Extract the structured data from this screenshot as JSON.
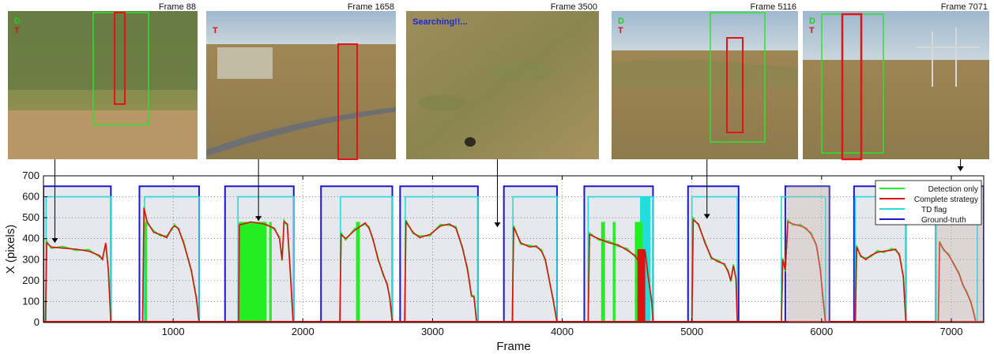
{
  "thumbnails": [
    {
      "frame": 88,
      "label": "Frame 88",
      "overlay_D": "D",
      "overlay_T": "T",
      "overlay_status": "",
      "scene": "olive",
      "boxes": [
        "green",
        "red"
      ]
    },
    {
      "frame": 1658,
      "label": "Frame 1658",
      "overlay_D": "",
      "overlay_T": "T",
      "overlay_status": "",
      "scene": "road",
      "boxes": [
        "red"
      ]
    },
    {
      "frame": 3500,
      "label": "Frame 3500",
      "overlay_D": "",
      "overlay_T": "",
      "overlay_status": "Searching!!...",
      "scene": "ground",
      "boxes": []
    },
    {
      "frame": 5116,
      "label": "Frame 5116",
      "overlay_D": "D",
      "overlay_T": "T",
      "overlay_status": "",
      "scene": "hills",
      "boxes": [
        "green",
        "red"
      ]
    },
    {
      "frame": 7071,
      "label": "Frame 7071",
      "overlay_D": "D",
      "overlay_T": "T",
      "overlay_status": "",
      "scene": "tower",
      "boxes": [
        "green",
        "red"
      ]
    }
  ],
  "colors": {
    "detection": "#22ee22",
    "complete": "#dd1111",
    "td_flag": "#22dddd",
    "ground_truth": "#1a1acc",
    "shade": "#e7e7ee",
    "highlight": "#cdb4a8"
  },
  "chart_data": {
    "type": "line",
    "xlabel": "Frame",
    "ylabel": "X (pixels)",
    "xlim": [
      0,
      7250
    ],
    "ylim": [
      0,
      700
    ],
    "xticks": [
      1000,
      2000,
      3000,
      4000,
      5000,
      6000,
      7000
    ],
    "yticks": [
      0,
      100,
      200,
      300,
      400,
      500,
      600,
      700
    ],
    "grid": "dotted",
    "legend_position": "top-right",
    "legend": [
      "Detection only",
      "Complete strategy",
      "TD flag",
      "Ground-truth"
    ],
    "segments": [
      {
        "gt": [
          0,
          520
        ],
        "td": [
          20,
          520
        ],
        "track": [
          [
            15,
            0
          ],
          [
            25,
            380
          ],
          [
            60,
            360
          ],
          [
            150,
            355
          ],
          [
            250,
            350
          ],
          [
            350,
            340
          ],
          [
            430,
            320
          ],
          [
            455,
            300
          ],
          [
            480,
            380
          ],
          [
            500,
            250
          ],
          [
            520,
            0
          ]
        ]
      },
      {
        "gt": [
          740,
          1200
        ],
        "td": [
          780,
          1200
        ],
        "track": [
          [
            765,
            0
          ],
          [
            775,
            545
          ],
          [
            800,
            480
          ],
          [
            850,
            430
          ],
          [
            900,
            420
          ],
          [
            950,
            405
          ],
          [
            990,
            450
          ],
          [
            1010,
            460
          ],
          [
            1040,
            450
          ],
          [
            1080,
            380
          ],
          [
            1140,
            250
          ],
          [
            1180,
            110
          ],
          [
            1200,
            0
          ]
        ]
      },
      {
        "gt": [
          1400,
          1930
        ],
        "td": [
          1500,
          1930
        ],
        "track": [
          [
            1505,
            0
          ],
          [
            1510,
            465
          ],
          [
            1600,
            480
          ],
          [
            1700,
            470
          ],
          [
            1780,
            450
          ],
          [
            1820,
            400
          ],
          [
            1840,
            300
          ],
          [
            1855,
            480
          ],
          [
            1880,
            470
          ],
          [
            1905,
            220
          ],
          [
            1925,
            0
          ]
        ]
      },
      {
        "gt": [
          2140,
          2690
        ],
        "td": [
          2290,
          2690
        ],
        "track": [
          [
            2285,
            0
          ],
          [
            2295,
            420
          ],
          [
            2330,
            400
          ],
          [
            2400,
            440
          ],
          [
            2480,
            475
          ],
          [
            2510,
            450
          ],
          [
            2540,
            400
          ],
          [
            2580,
            300
          ],
          [
            2620,
            230
          ],
          [
            2650,
            180
          ],
          [
            2670,
            120
          ],
          [
            2690,
            0
          ]
        ]
      },
      {
        "gt": [
          2750,
          3350
        ],
        "td": [
          2790,
          3350
        ],
        "track": [
          [
            2785,
            0
          ],
          [
            2795,
            480
          ],
          [
            2850,
            430
          ],
          [
            2900,
            405
          ],
          [
            2980,
            420
          ],
          [
            3060,
            460
          ],
          [
            3130,
            470
          ],
          [
            3180,
            450
          ],
          [
            3230,
            360
          ],
          [
            3270,
            250
          ],
          [
            3300,
            130
          ],
          [
            3320,
            120
          ],
          [
            3340,
            0
          ]
        ]
      },
      {
        "gt": [
          3550,
          3960
        ],
        "td": [
          3620,
          3960
        ],
        "track": [
          [
            3615,
            0
          ],
          [
            3625,
            455
          ],
          [
            3680,
            380
          ],
          [
            3750,
            360
          ],
          [
            3800,
            365
          ],
          [
            3840,
            340
          ],
          [
            3870,
            300
          ],
          [
            3900,
            200
          ],
          [
            3930,
            110
          ],
          [
            3960,
            0
          ]
        ]
      },
      {
        "gt": [
          4170,
          4700
        ],
        "td": [
          4200,
          4700
        ],
        "track": [
          [
            4200,
            0
          ],
          [
            4210,
            420
          ],
          [
            4280,
            400
          ],
          [
            4360,
            380
          ],
          [
            4430,
            370
          ],
          [
            4500,
            345
          ],
          [
            4560,
            320
          ],
          [
            4600,
            280
          ],
          [
            4640,
            340
          ],
          [
            4660,
            230
          ],
          [
            4690,
            100
          ],
          [
            4700,
            0
          ]
        ]
      },
      {
        "gt": [
          4970,
          5360
        ],
        "td": [
          5000,
          5350
        ],
        "track": [
          [
            5000,
            0
          ],
          [
            5010,
            490
          ],
          [
            5050,
            470
          ],
          [
            5100,
            380
          ],
          [
            5150,
            310
          ],
          [
            5200,
            290
          ],
          [
            5250,
            280
          ],
          [
            5280,
            240
          ],
          [
            5300,
            200
          ],
          [
            5320,
            270
          ],
          [
            5340,
            210
          ],
          [
            5350,
            0
          ]
        ]
      },
      {
        "gt": [
          5720,
          6060
        ],
        "td": [
          5690,
          6030
        ],
        "track": [
          [
            5690,
            0
          ],
          [
            5700,
            300
          ],
          [
            5720,
            250
          ],
          [
            5740,
            480
          ],
          [
            5780,
            470
          ],
          [
            5840,
            460
          ],
          [
            5880,
            450
          ],
          [
            5920,
            420
          ],
          [
            5960,
            370
          ],
          [
            5990,
            250
          ],
          [
            6010,
            120
          ],
          [
            6030,
            0
          ]
        ]
      },
      {
        "gt": [
          6250,
          6650
        ],
        "td": [
          6260,
          6650
        ],
        "track": [
          [
            6260,
            0
          ],
          [
            6270,
            360
          ],
          [
            6300,
            320
          ],
          [
            6340,
            300
          ],
          [
            6380,
            320
          ],
          [
            6430,
            335
          ],
          [
            6480,
            340
          ],
          [
            6540,
            345
          ],
          [
            6570,
            350
          ],
          [
            6600,
            320
          ],
          [
            6630,
            220
          ],
          [
            6650,
            0
          ]
        ]
      },
      {
        "gt": [
          6880,
          7250
        ],
        "td": [
          6880,
          7200
        ],
        "track": [
          [
            6900,
            0
          ],
          [
            6910,
            380
          ],
          [
            6940,
            350
          ],
          [
            6980,
            320
          ],
          [
            7020,
            280
          ],
          [
            7060,
            230
          ],
          [
            7090,
            180
          ],
          [
            7120,
            140
          ],
          [
            7150,
            100
          ],
          [
            7170,
            50
          ],
          [
            7190,
            0
          ]
        ]
      }
    ],
    "detection_bursts": [
      [
        780,
        800
      ],
      [
        1510,
        1720
      ],
      [
        1740,
        1760
      ],
      [
        2410,
        2440
      ],
      [
        4300,
        4330
      ],
      [
        4390,
        4410
      ],
      [
        4560,
        4620
      ]
    ],
    "red_bursts": [
      [
        4580,
        4640
      ]
    ],
    "cyan_bursts": [
      [
        4600,
        4680
      ]
    ],
    "highlight_spans": [
      [
        5740,
        6060
      ],
      [
        6880,
        7250
      ]
    ],
    "pointer_frames": [
      88,
      1658,
      3500,
      5116,
      7071
    ]
  }
}
